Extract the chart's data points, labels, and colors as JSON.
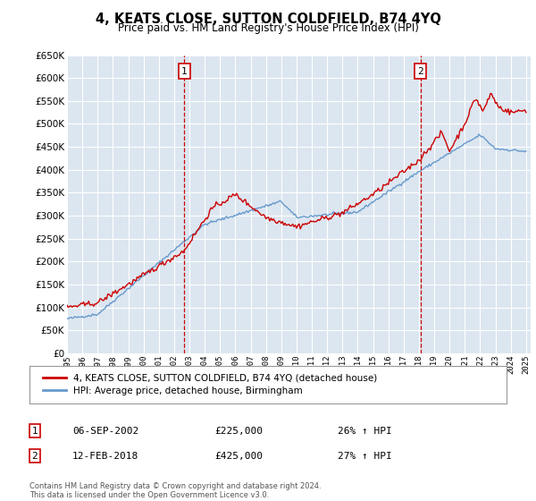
{
  "title": "4, KEATS CLOSE, SUTTON COLDFIELD, B74 4YQ",
  "subtitle": "Price paid vs. HM Land Registry's House Price Index (HPI)",
  "red_label": "4, KEATS CLOSE, SUTTON COLDFIELD, B74 4YQ (detached house)",
  "blue_label": "HPI: Average price, detached house, Birmingham",
  "annotation1_label": "1",
  "annotation1_date": "06-SEP-2002",
  "annotation1_price": "£225,000",
  "annotation1_hpi": "26% ↑ HPI",
  "annotation2_label": "2",
  "annotation2_date": "12-FEB-2018",
  "annotation2_price": "£425,000",
  "annotation2_hpi": "27% ↑ HPI",
  "footer": "Contains HM Land Registry data © Crown copyright and database right 2024.\nThis data is licensed under the Open Government Licence v3.0.",
  "ylim_min": 0,
  "ylim_max": 650000,
  "plot_bg": "#dce6f0",
  "red_color": "#cc0000",
  "blue_color": "#6699cc",
  "grid_color": "#ffffff",
  "sale1_year": 2002.67,
  "sale2_year": 2018.1
}
